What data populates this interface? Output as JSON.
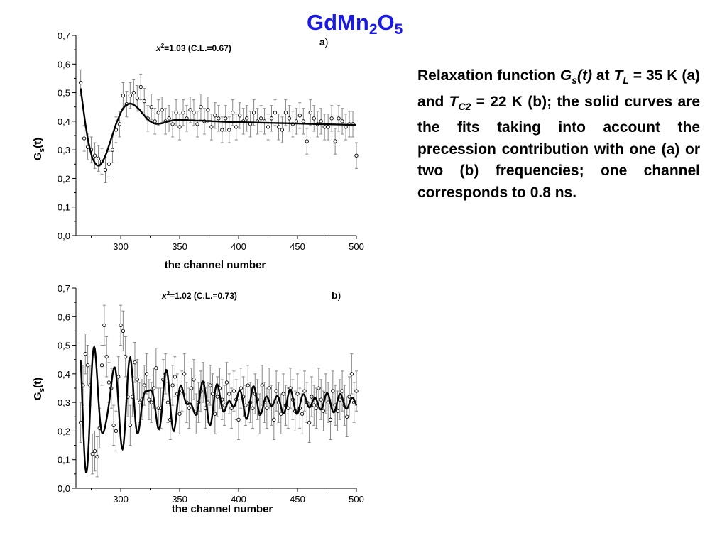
{
  "slide": {
    "title_main": "GdMn",
    "title_sub1": "2",
    "title_mid": "O",
    "title_sub2": "5",
    "title_color": "#1a1ae6"
  },
  "caption": {
    "p1": "Relaxation function ",
    "g": "G",
    "g_sub": "s",
    "g_arg": "(t)",
    "p2": " at ",
    "tl": "T",
    "tl_sub": "L",
    "p3": " = 35 K (a) and ",
    "tc": "T",
    "tc_sub": "C2",
    "p4": " = 22 K (b); the solid curves are the fits taking into account the precession contribution with one (a) or two (b) frequencies; one channel corresponds to 0.8 ns."
  },
  "chart_data": [
    {
      "type": "scatter",
      "panel_label": "a",
      "panel_label_paren": ")",
      "annotation": "=1.03 (C.L.=0.67)",
      "annotation_chi": "x",
      "annotation_sup": "2",
      "xlabel": "the channel number",
      "ylabel": "G",
      "ylabel_sub": "s",
      "ylabel_arg": "(t)",
      "xlim": [
        262,
        500
      ],
      "ylim": [
        0.0,
        0.7
      ],
      "xticks": [
        300,
        350,
        400,
        450,
        500
      ],
      "yticks": [
        "0,0",
        "0,1",
        "0,2",
        "0,3",
        "0,4",
        "0,5",
        "0,6",
        "0,7"
      ],
      "yticks_values": [
        0,
        0.1,
        0.2,
        0.3,
        0.4,
        0.5,
        0.6,
        0.7
      ],
      "points": {
        "x": [
          266,
          269,
          272,
          275,
          278,
          281,
          284,
          287,
          290,
          293,
          296,
          299,
          302,
          305,
          308,
          311,
          314,
          317,
          320,
          323,
          326,
          329,
          332,
          335,
          338,
          341,
          344,
          347,
          350,
          353,
          356,
          359,
          362,
          365,
          368,
          371,
          374,
          377,
          380,
          383,
          386,
          389,
          392,
          395,
          398,
          401,
          404,
          407,
          410,
          413,
          416,
          419,
          422,
          425,
          428,
          431,
          434,
          437,
          440,
          443,
          446,
          449,
          452,
          455,
          458,
          461,
          464,
          467,
          470,
          473,
          476,
          479,
          482,
          485,
          488,
          491,
          494,
          497,
          500
        ],
        "y": [
          0.535,
          0.34,
          0.31,
          0.3,
          0.28,
          0.27,
          0.26,
          0.23,
          0.25,
          0.3,
          0.37,
          0.39,
          0.49,
          0.46,
          0.49,
          0.5,
          0.48,
          0.52,
          0.47,
          0.41,
          0.45,
          0.4,
          0.43,
          0.44,
          0.4,
          0.41,
          0.39,
          0.43,
          0.38,
          0.43,
          0.41,
          0.44,
          0.43,
          0.39,
          0.45,
          0.4,
          0.44,
          0.38,
          0.42,
          0.41,
          0.37,
          0.41,
          0.37,
          0.43,
          0.38,
          0.42,
          0.4,
          0.41,
          0.39,
          0.43,
          0.4,
          0.41,
          0.4,
          0.38,
          0.41,
          0.43,
          0.38,
          0.37,
          0.43,
          0.41,
          0.39,
          0.4,
          0.42,
          0.4,
          0.33,
          0.43,
          0.41,
          0.39,
          0.4,
          0.38,
          0.38,
          0.41,
          0.33,
          0.41,
          0.4,
          0.38,
          0.39,
          0.39,
          0.28
        ],
        "err": 0.045
      },
      "fit": {
        "x": [
          266,
          268,
          270,
          272,
          274,
          276,
          278,
          280,
          282,
          284,
          286,
          288,
          290,
          292,
          294,
          296,
          298,
          300,
          302,
          304,
          306,
          308,
          310,
          312,
          314,
          316,
          318,
          320,
          322,
          324,
          326,
          328,
          330,
          332,
          334,
          336,
          338,
          340,
          342,
          344,
          346,
          348,
          350,
          352,
          354,
          356,
          358,
          360,
          362,
          364,
          366,
          368,
          370,
          372,
          374,
          376,
          378,
          380,
          384,
          390,
          400,
          410,
          420,
          430,
          440,
          450,
          460,
          470,
          480,
          490,
          500
        ],
        "y": [
          0.515,
          0.45,
          0.39,
          0.34,
          0.3,
          0.27,
          0.255,
          0.245,
          0.245,
          0.255,
          0.27,
          0.29,
          0.315,
          0.34,
          0.365,
          0.39,
          0.41,
          0.43,
          0.445,
          0.455,
          0.46,
          0.462,
          0.46,
          0.455,
          0.448,
          0.44,
          0.43,
          0.42,
          0.41,
          0.402,
          0.397,
          0.393,
          0.391,
          0.391,
          0.392,
          0.394,
          0.397,
          0.399,
          0.401,
          0.403,
          0.404,
          0.405,
          0.405,
          0.405,
          0.404,
          0.404,
          0.403,
          0.403,
          0.403,
          0.402,
          0.402,
          0.402,
          0.402,
          0.401,
          0.401,
          0.401,
          0.4,
          0.4,
          0.399,
          0.398,
          0.397,
          0.396,
          0.395,
          0.394,
          0.393,
          0.392,
          0.391,
          0.39,
          0.389,
          0.388,
          0.387
        ]
      }
    },
    {
      "type": "scatter",
      "panel_label": "b",
      "panel_label_paren": ")",
      "annotation": "=1.02 (C.L.=0.73)",
      "annotation_chi": "x",
      "annotation_sup": "2",
      "xlabel": "the channel number",
      "ylabel": "G",
      "ylabel_sub": "s",
      "ylabel_arg": "(t)",
      "xlim": [
        262,
        500
      ],
      "ylim": [
        0.0,
        0.7
      ],
      "xticks": [
        300,
        350,
        400,
        450,
        500
      ],
      "yticks": [
        "0,0",
        "0,1",
        "0,2",
        "0,3",
        "0,4",
        "0,5",
        "0,6",
        "0,7"
      ],
      "yticks_values": [
        0,
        0.1,
        0.2,
        0.3,
        0.4,
        0.5,
        0.6,
        0.7
      ],
      "points": {
        "x": [
          266,
          268,
          270,
          272,
          274,
          276,
          278,
          280,
          282,
          284,
          286,
          288,
          290,
          292,
          294,
          296,
          298,
          300,
          302,
          304,
          306,
          308,
          310,
          312,
          314,
          316,
          318,
          320,
          322,
          324,
          326,
          328,
          330,
          332,
          334,
          336,
          338,
          340,
          342,
          344,
          346,
          348,
          350,
          352,
          354,
          356,
          358,
          360,
          362,
          364,
          366,
          368,
          370,
          372,
          374,
          376,
          378,
          380,
          382,
          384,
          386,
          388,
          390,
          392,
          394,
          396,
          398,
          400,
          402,
          404,
          406,
          408,
          410,
          412,
          414,
          416,
          418,
          420,
          422,
          424,
          426,
          428,
          430,
          432,
          434,
          436,
          438,
          440,
          442,
          444,
          446,
          448,
          450,
          452,
          454,
          456,
          458,
          460,
          462,
          464,
          466,
          468,
          470,
          472,
          474,
          476,
          478,
          480,
          482,
          484,
          486,
          488,
          490,
          492,
          494,
          496,
          498,
          500
        ],
        "y": [
          0.23,
          0.36,
          0.47,
          0.43,
          0.36,
          0.12,
          0.13,
          0.11,
          0.21,
          0.43,
          0.57,
          0.46,
          0.37,
          0.35,
          0.22,
          0.2,
          0.39,
          0.57,
          0.55,
          0.46,
          0.32,
          0.22,
          0.32,
          0.44,
          0.38,
          0.3,
          0.31,
          0.36,
          0.4,
          0.31,
          0.3,
          0.35,
          0.42,
          0.28,
          0.28,
          0.38,
          0.4,
          0.3,
          0.24,
          0.36,
          0.39,
          0.33,
          0.26,
          0.34,
          0.4,
          0.3,
          0.28,
          0.35,
          0.38,
          0.26,
          0.3,
          0.34,
          0.37,
          0.28,
          0.3,
          0.36,
          0.33,
          0.26,
          0.32,
          0.35,
          0.31,
          0.29,
          0.37,
          0.33,
          0.28,
          0.34,
          0.31,
          0.24,
          0.35,
          0.32,
          0.29,
          0.36,
          0.3,
          0.28,
          0.33,
          0.31,
          0.26,
          0.36,
          0.3,
          0.28,
          0.35,
          0.29,
          0.24,
          0.34,
          0.3,
          0.26,
          0.33,
          0.29,
          0.28,
          0.35,
          0.31,
          0.27,
          0.33,
          0.28,
          0.26,
          0.34,
          0.3,
          0.23,
          0.32,
          0.29,
          0.28,
          0.35,
          0.31,
          0.27,
          0.33,
          0.3,
          0.24,
          0.34,
          0.29,
          0.27,
          0.31,
          0.34,
          0.29,
          0.25,
          0.32,
          0.4,
          0.3,
          0.34
        ],
        "err": 0.07
      },
      "fit": {
        "freq1_period": 15.0,
        "freq2_period": 10.5,
        "baseline": 0.3,
        "amp1": 0.2,
        "amp2": 0.06,
        "decay1": 70,
        "decay2": 250,
        "x_start": 266,
        "x_end": 500
      }
    }
  ],
  "colors": {
    "title": "#1a1ae6",
    "points": "#000000",
    "errorbars": "#888888",
    "fit": "#000000"
  }
}
